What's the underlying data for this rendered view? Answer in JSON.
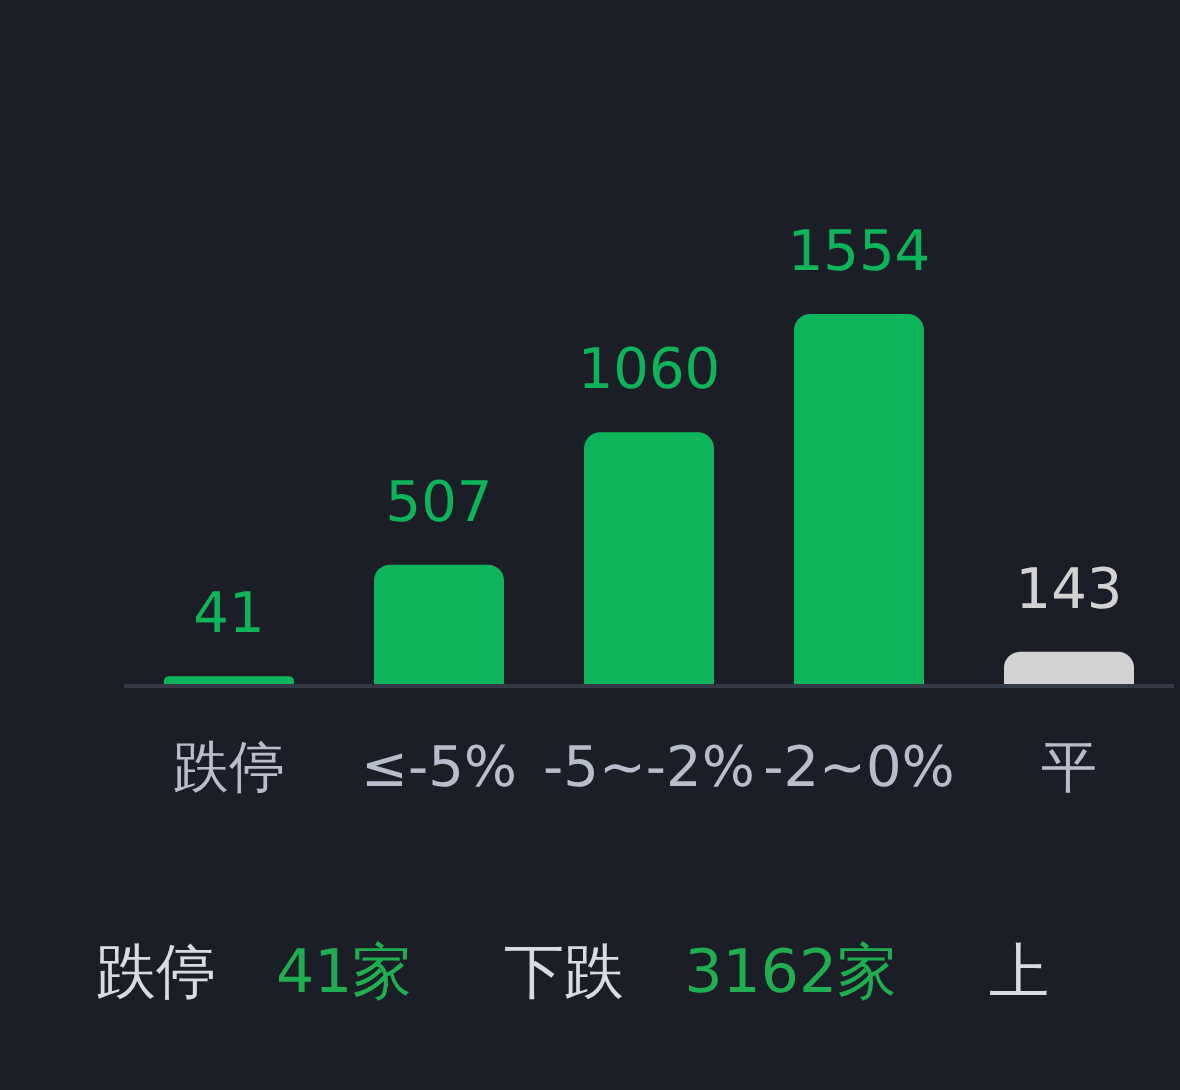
{
  "chart_data": {
    "type": "bar",
    "categories": [
      "跌停",
      "≤-5%",
      "-5~-2%",
      "-2~0%",
      "平"
    ],
    "values": [
      41,
      507,
      1060,
      1554,
      143
    ],
    "colors": [
      "#0db45a",
      "#0db45a",
      "#0db45a",
      "#0db45a",
      "#d2d2d2"
    ],
    "data_labels": true,
    "annotations": [
      "跌停",
      "41家",
      "下跌",
      "3162家",
      "上"
    ]
  }
}
